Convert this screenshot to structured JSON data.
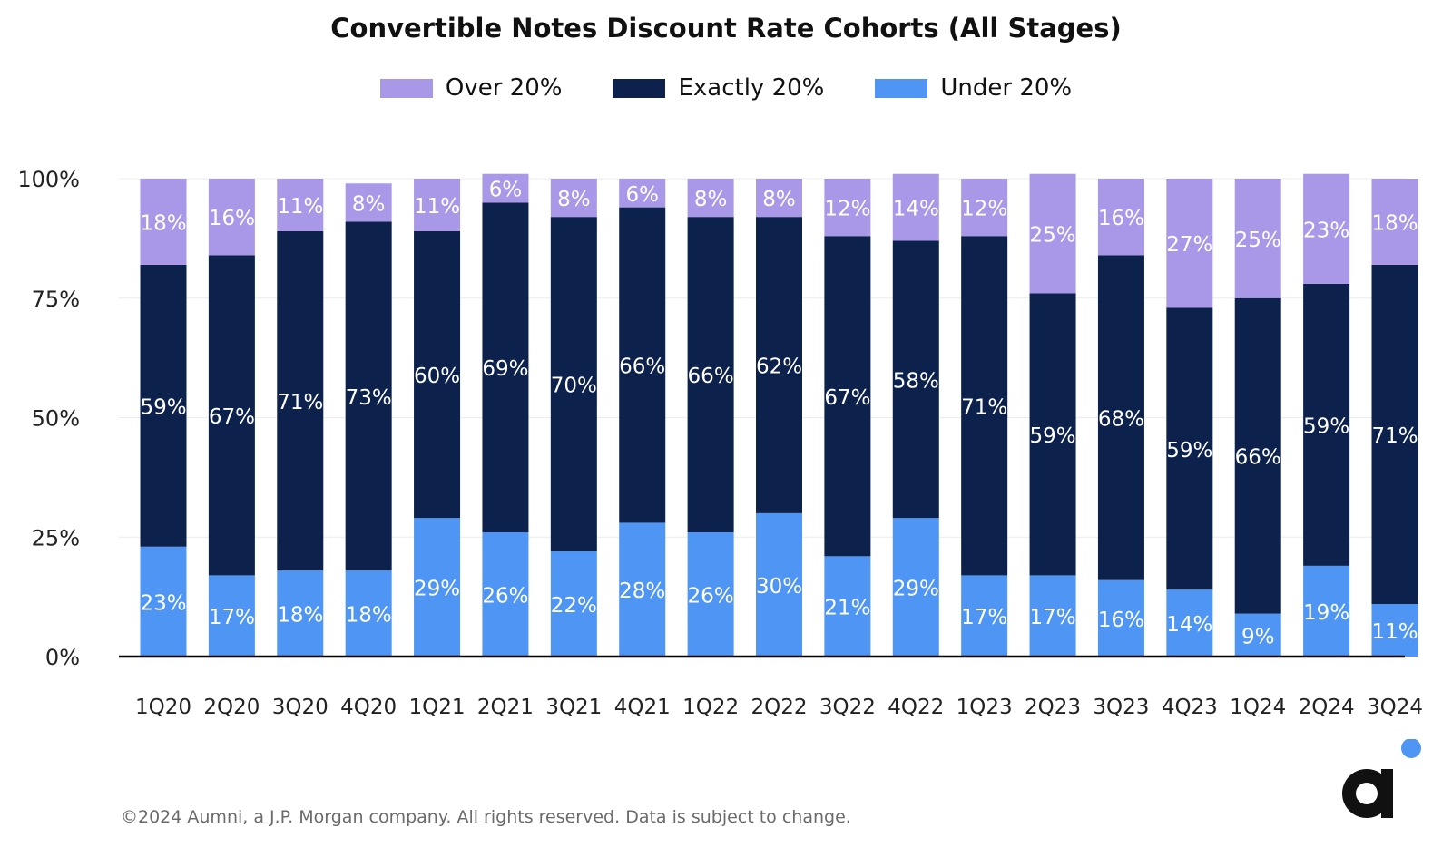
{
  "chart_data": {
    "type": "bar",
    "stacked": true,
    "title": "Convertible Notes Discount Rate Cohorts (All Stages)",
    "categories": [
      "1Q20",
      "2Q20",
      "3Q20",
      "4Q20",
      "1Q21",
      "2Q21",
      "3Q21",
      "4Q21",
      "1Q22",
      "2Q22",
      "3Q22",
      "4Q22",
      "1Q23",
      "2Q23",
      "3Q23",
      "4Q23",
      "1Q24",
      "2Q24",
      "3Q24"
    ],
    "series": [
      {
        "name": "Under 20%",
        "color": "#4e95f4",
        "values": [
          23,
          17,
          18,
          18,
          29,
          26,
          22,
          28,
          26,
          30,
          21,
          29,
          17,
          17,
          16,
          14,
          9,
          19,
          11
        ]
      },
      {
        "name": "Exactly 20%",
        "color": "#0c214b",
        "values": [
          59,
          67,
          71,
          73,
          60,
          69,
          70,
          66,
          66,
          62,
          67,
          58,
          71,
          59,
          68,
          59,
          66,
          59,
          71
        ]
      },
      {
        "name": "Over 20%",
        "color": "#a997e8",
        "values": [
          18,
          16,
          11,
          8,
          11,
          6,
          8,
          6,
          8,
          8,
          12,
          14,
          12,
          25,
          16,
          27,
          25,
          23,
          18
        ]
      }
    ],
    "legend_order": [
      "Over 20%",
      "Exactly 20%",
      "Under 20%"
    ],
    "legend_position": "top",
    "yticks": [
      "0%",
      "25%",
      "50%",
      "75%",
      "100%"
    ],
    "ylim": [
      0,
      100
    ],
    "grid": true
  },
  "footer": "©2024 Aumni, a J.P. Morgan company. All rights reserved. Data is subject to change.",
  "logo": {
    "letter": "a",
    "accent": "#4e95f4"
  }
}
